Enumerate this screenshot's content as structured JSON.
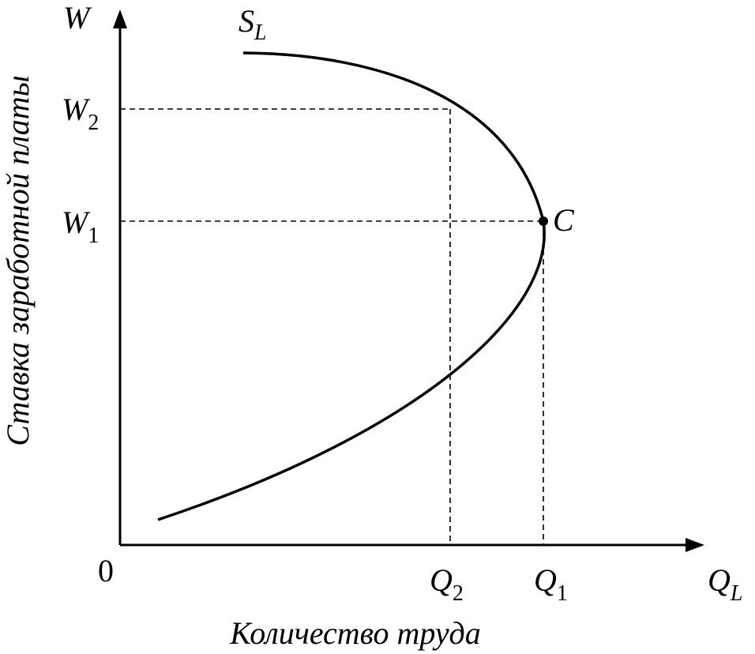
{
  "axes": {
    "y_symbol": "W",
    "x_symbol": {
      "main": "Q",
      "sub": "L"
    },
    "origin": "0",
    "y_title": "Ставка заработной платы",
    "x_title": "Количество труда"
  },
  "curve": {
    "main": "S",
    "sub": "L"
  },
  "wages": [
    {
      "main": "W",
      "sub": "2"
    },
    {
      "main": "W",
      "sub": "1"
    }
  ],
  "quantities": [
    {
      "main": "Q",
      "sub": "2"
    },
    {
      "main": "Q",
      "sub": "1"
    }
  ],
  "point": "C"
}
